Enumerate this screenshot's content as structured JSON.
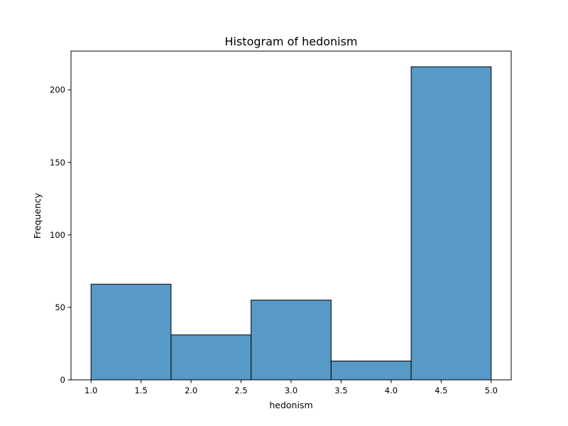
{
  "chart_data": {
    "type": "bar",
    "title": "Histogram of hedonism",
    "xlabel": "hedonism",
    "ylabel": "Frequency",
    "bins": [
      {
        "start": 1.0,
        "end": 1.8,
        "count": 66
      },
      {
        "start": 1.8,
        "end": 2.6,
        "count": 31
      },
      {
        "start": 2.6,
        "end": 3.4,
        "count": 55
      },
      {
        "start": 3.4,
        "end": 4.2,
        "count": 13
      },
      {
        "start": 4.2,
        "end": 5.0,
        "count": 216
      }
    ],
    "xlim": [
      0.8,
      5.2
    ],
    "ylim": [
      0,
      226.8
    ],
    "xticks": [
      "1.0",
      "1.5",
      "2.0",
      "2.5",
      "3.0",
      "3.5",
      "4.0",
      "4.5",
      "5.0"
    ],
    "yticks": [
      "0",
      "50",
      "100",
      "150",
      "200"
    ],
    "grid": false,
    "colors": {
      "bar_fill": "#5799c7",
      "bar_edge": "#000000",
      "axis": "#000000"
    }
  }
}
